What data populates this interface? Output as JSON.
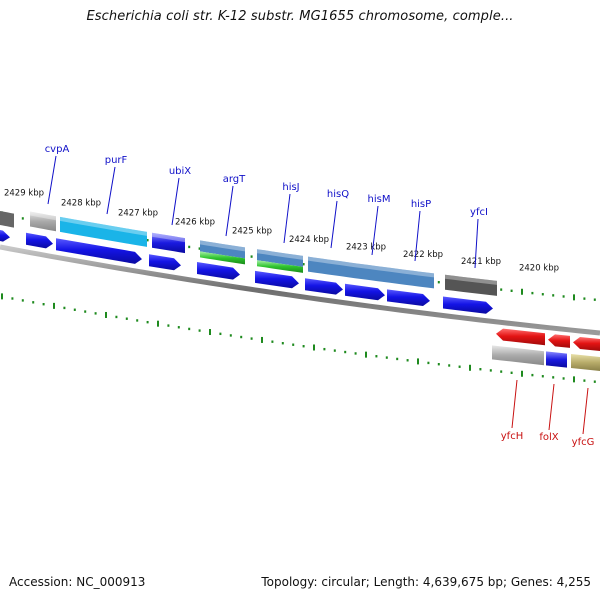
{
  "title": "Escherichia coli str. K-12 substr. MG1655 chromosome, comple...",
  "footer": {
    "accession": "Accession: NC_000913",
    "stats": "Topology: circular; Length: 4,639,675 bp; Genes: 4,255"
  },
  "colors": {
    "forward_label": "#1010c8",
    "reverse_label": "#c81010",
    "tick": "#1e8a1e",
    "backbone": "#808080"
  },
  "kbp_ticks": [
    {
      "label": "2429 kbp"
    },
    {
      "label": "2428 kbp"
    },
    {
      "label": "2427 kbp"
    },
    {
      "label": "2426 kbp"
    },
    {
      "label": "2425 kbp"
    },
    {
      "label": "2424 kbp"
    },
    {
      "label": "2423 kbp"
    },
    {
      "label": "2422 kbp"
    },
    {
      "label": "2421 kbp"
    },
    {
      "label": "2420 kbp"
    }
  ],
  "forward_genes": [
    {
      "name": "cvpA",
      "color": "#aaaaaa",
      "highlight": "#e4e4e4"
    },
    {
      "name": "purF",
      "color": "#1ab4e8",
      "highlight": "#a8ecff"
    },
    {
      "name": "ubiX",
      "color": "#1a1ae0",
      "highlight": "#8a8aff"
    },
    {
      "name": "argT",
      "color": "#4d86c0",
      "highlight": "#b0d4f4"
    },
    {
      "name": "hisJ",
      "color": "#4d86c0",
      "highlight": "#b0d4f4"
    },
    {
      "name": "hisQ",
      "color": "#4d86c0",
      "highlight": "#b0d4f4"
    },
    {
      "name": "hisM",
      "color": "#4d86c0",
      "highlight": "#b0d4f4"
    },
    {
      "name": "hisP",
      "color": "#4d86c0",
      "highlight": "#b0d4f4"
    },
    {
      "name": "yfcI",
      "color": "#555555",
      "highlight": "#a8a8a8"
    }
  ],
  "reverse_genes": [
    {
      "name": "yfcH",
      "color": "#e01a1a",
      "highlight": "#ff9a9a"
    },
    {
      "name": "folX",
      "color": "#e01a1a",
      "highlight": "#ff9a9a"
    },
    {
      "name": "yfcG",
      "color": "#e01a1a",
      "highlight": "#ff9a9a"
    }
  ]
}
